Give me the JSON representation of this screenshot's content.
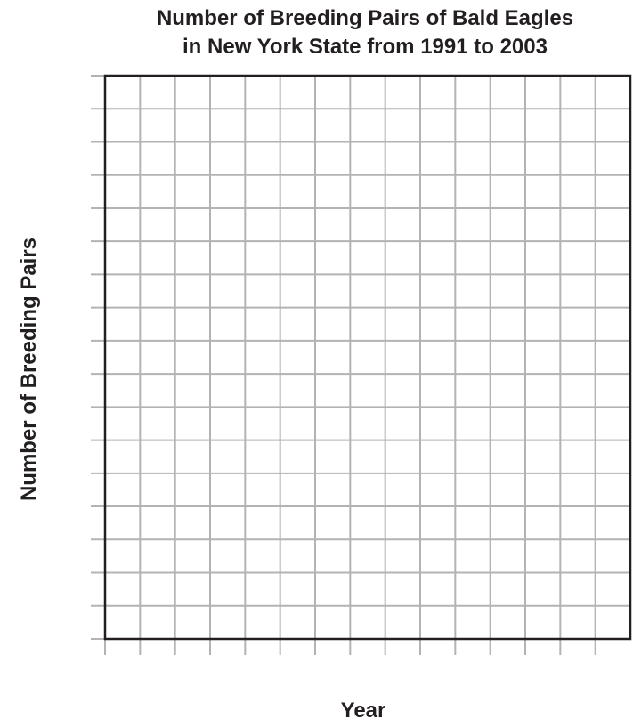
{
  "chart_data": {
    "type": "line",
    "title": [
      "Number of Breeding Pairs of Bald Eagles",
      "in New York State from 1991 to 2003"
    ],
    "xlabel": "Year",
    "ylabel": "Number of Breeding Pairs",
    "grid": true,
    "columns": 15,
    "rows": 17,
    "series": [],
    "colors": {
      "grid": "#b3b3b3",
      "border": "#231f20",
      "text": "#231f20"
    }
  }
}
